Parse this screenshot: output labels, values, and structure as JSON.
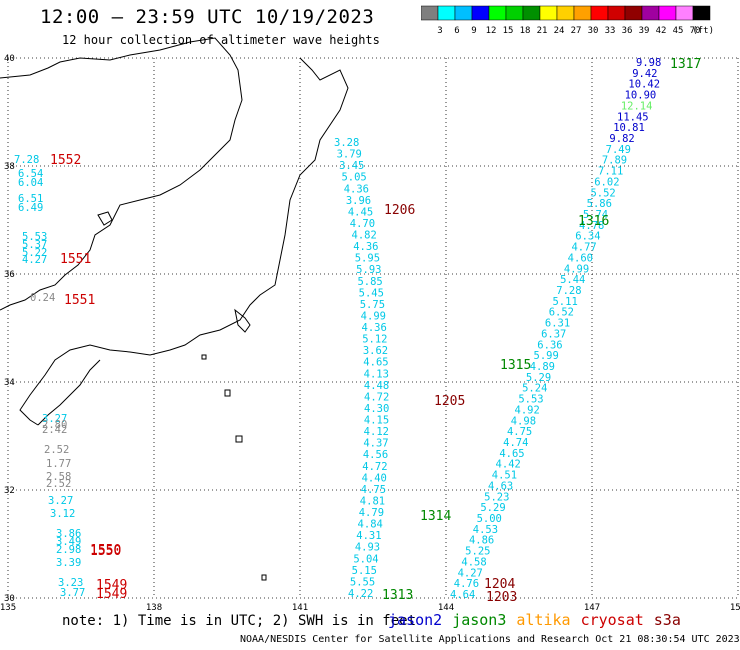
{
  "title": "12:00 – 23:59 UTC 10/19/2023",
  "subtitle": "12 hour collection of altimeter wave heights",
  "note": "note: 1) Time is in UTC; 2) SWH is in feet",
  "credit": "NOAA/NESDIS Center for Satellite Applications and Research   Oct 21 08:30:54 UTC 2023",
  "legend": {
    "unit": "(ft)",
    "colors": [
      "#7f7f7f",
      "#00ffff",
      "#00bfff",
      "#0000ff",
      "#00ff00",
      "#00d000",
      "#009000",
      "#ffff00",
      "#ffd000",
      "#ffa000",
      "#ff0000",
      "#d00000",
      "#900000",
      "#a000a0",
      "#ff00ff",
      "#ff80ff",
      "#000000"
    ],
    "labels": [
      "3",
      "6",
      "9",
      "12",
      "15",
      "18",
      "21",
      "24",
      "27",
      "30",
      "33",
      "36",
      "39",
      "42",
      "45",
      "70"
    ]
  },
  "satellites": [
    {
      "name": "jason2",
      "color": "#0000cc"
    },
    {
      "name": "jason3",
      "color": "#008800"
    },
    {
      "name": "altika",
      "color": "#ff9900"
    },
    {
      "name": "cryosat",
      "color": "#cc0000"
    },
    {
      "name": "s3a",
      "color": "#880000"
    }
  ],
  "map": {
    "lon_ticks": [
      "135",
      "138",
      "141",
      "144",
      "147",
      "150"
    ],
    "lat_ticks": [
      "40",
      "38",
      "36",
      "34",
      "32",
      "30"
    ],
    "lon_range": [
      135,
      150
    ],
    "lat_range": [
      30,
      40
    ]
  },
  "time_labels": [
    {
      "text": "1317",
      "color": "#008800"
    },
    {
      "text": "1316",
      "color": "#008800"
    },
    {
      "text": "1315",
      "color": "#008800"
    },
    {
      "text": "1314",
      "color": "#008800"
    },
    {
      "text": "1313",
      "color": "#008800"
    },
    {
      "text": "1206",
      "color": "#880000"
    },
    {
      "text": "1205",
      "color": "#880000"
    },
    {
      "text": "1204",
      "color": "#880000"
    },
    {
      "text": "1203",
      "color": "#880000"
    },
    {
      "text": "1552",
      "color": "#cc0000"
    },
    {
      "text": "1551",
      "color": "#cc0000"
    },
    {
      "text": "1551",
      "color": "#cc0000"
    },
    {
      "text": "1550",
      "color": "#cc0000"
    },
    {
      "text": "1550",
      "color": "#cc0000"
    },
    {
      "text": "1549",
      "color": "#cc0000"
    },
    {
      "text": "1549",
      "color": "#cc0000"
    }
  ],
  "track_ne": {
    "color": "#00c8e6",
    "values": [
      "9.98",
      "9.42",
      "10.42",
      "10.90",
      "12.14",
      "11.45",
      "10.81",
      "9.82",
      "7.49",
      "7.89",
      "7.11",
      "6.02",
      "5.52",
      "5.86",
      "5.74",
      "4.78",
      "6.34",
      "4.77",
      "4.60",
      "4.99",
      "5.44",
      "7.28",
      "5.11",
      "6.52",
      "6.31",
      "6.37",
      "6.36",
      "5.99",
      "4.89",
      "5.29",
      "5.24",
      "5.53",
      "4.92",
      "4.98",
      "4.75",
      "4.74",
      "4.65",
      "4.42",
      "4.51",
      "4.63",
      "5.23",
      "5.29",
      "5.00",
      "4.53",
      "4.86",
      "5.25",
      "4.58",
      "4.27",
      "4.76",
      "4.64"
    ],
    "value_colors": [
      "#0000cc",
      "#0000cc",
      "#0000cc",
      "#0000cc",
      "#66ee66",
      "#0000cc",
      "#0000cc",
      "#0000cc"
    ]
  },
  "track_nw": {
    "color": "#00c8e6",
    "values": [
      "3.28",
      "3.79",
      "3.45",
      "5.05",
      "4.36",
      "3.96",
      "4.45",
      "4.70",
      "4.82",
      "4.36",
      "5.95",
      "5.93",
      "5.85",
      "5.45",
      "5.75",
      "4.99",
      "4.36",
      "5.12",
      "3.62",
      "4.65",
      "4.13",
      "4.48",
      "4.72",
      "4.30",
      "4.15",
      "4.12",
      "4.37",
      "4.56",
      "4.72",
      "4.40",
      "4.75",
      "4.81",
      "4.79",
      "4.84",
      "4.31",
      "4.93",
      "5.04",
      "5.15",
      "5.55",
      "4.22"
    ]
  },
  "track_west": {
    "values": [
      {
        "text": "7.28",
        "color": "#00c8e6"
      },
      {
        "text": "6.54",
        "color": "#00c8e6"
      },
      {
        "text": "6.04",
        "color": "#00c8e6"
      },
      {
        "text": "6.51",
        "color": "#00c8e6"
      },
      {
        "text": "6.49",
        "color": "#00c8e6"
      },
      {
        "text": "5.53",
        "color": "#00c8e6"
      },
      {
        "text": "5.37",
        "color": "#00c8e6"
      },
      {
        "text": "5.22",
        "color": "#00c8e6"
      },
      {
        "text": "4.27",
        "color": "#00c8e6"
      },
      {
        "text": "0.24",
        "color": "#888888"
      },
      {
        "text": "3.27",
        "color": "#00c8e6"
      },
      {
        "text": "2.80",
        "color": "#888888"
      },
      {
        "text": "2.42",
        "color": "#888888"
      },
      {
        "text": "2.52",
        "color": "#888888"
      },
      {
        "text": "1.77",
        "color": "#888888"
      },
      {
        "text": "2.58",
        "color": "#888888"
      },
      {
        "text": "2.52",
        "color": "#888888"
      },
      {
        "text": "3.27",
        "color": "#00c8e6"
      },
      {
        "text": "3.12",
        "color": "#00c8e6"
      },
      {
        "text": "3.86",
        "color": "#00c8e6"
      },
      {
        "text": "3.49",
        "color": "#00c8e6"
      },
      {
        "text": "2.98",
        "color": "#00c8e6"
      },
      {
        "text": "3.39",
        "color": "#00c8e6"
      },
      {
        "text": "3.23",
        "color": "#00c8e6"
      },
      {
        "text": "3.77",
        "color": "#00c8e6"
      }
    ]
  }
}
